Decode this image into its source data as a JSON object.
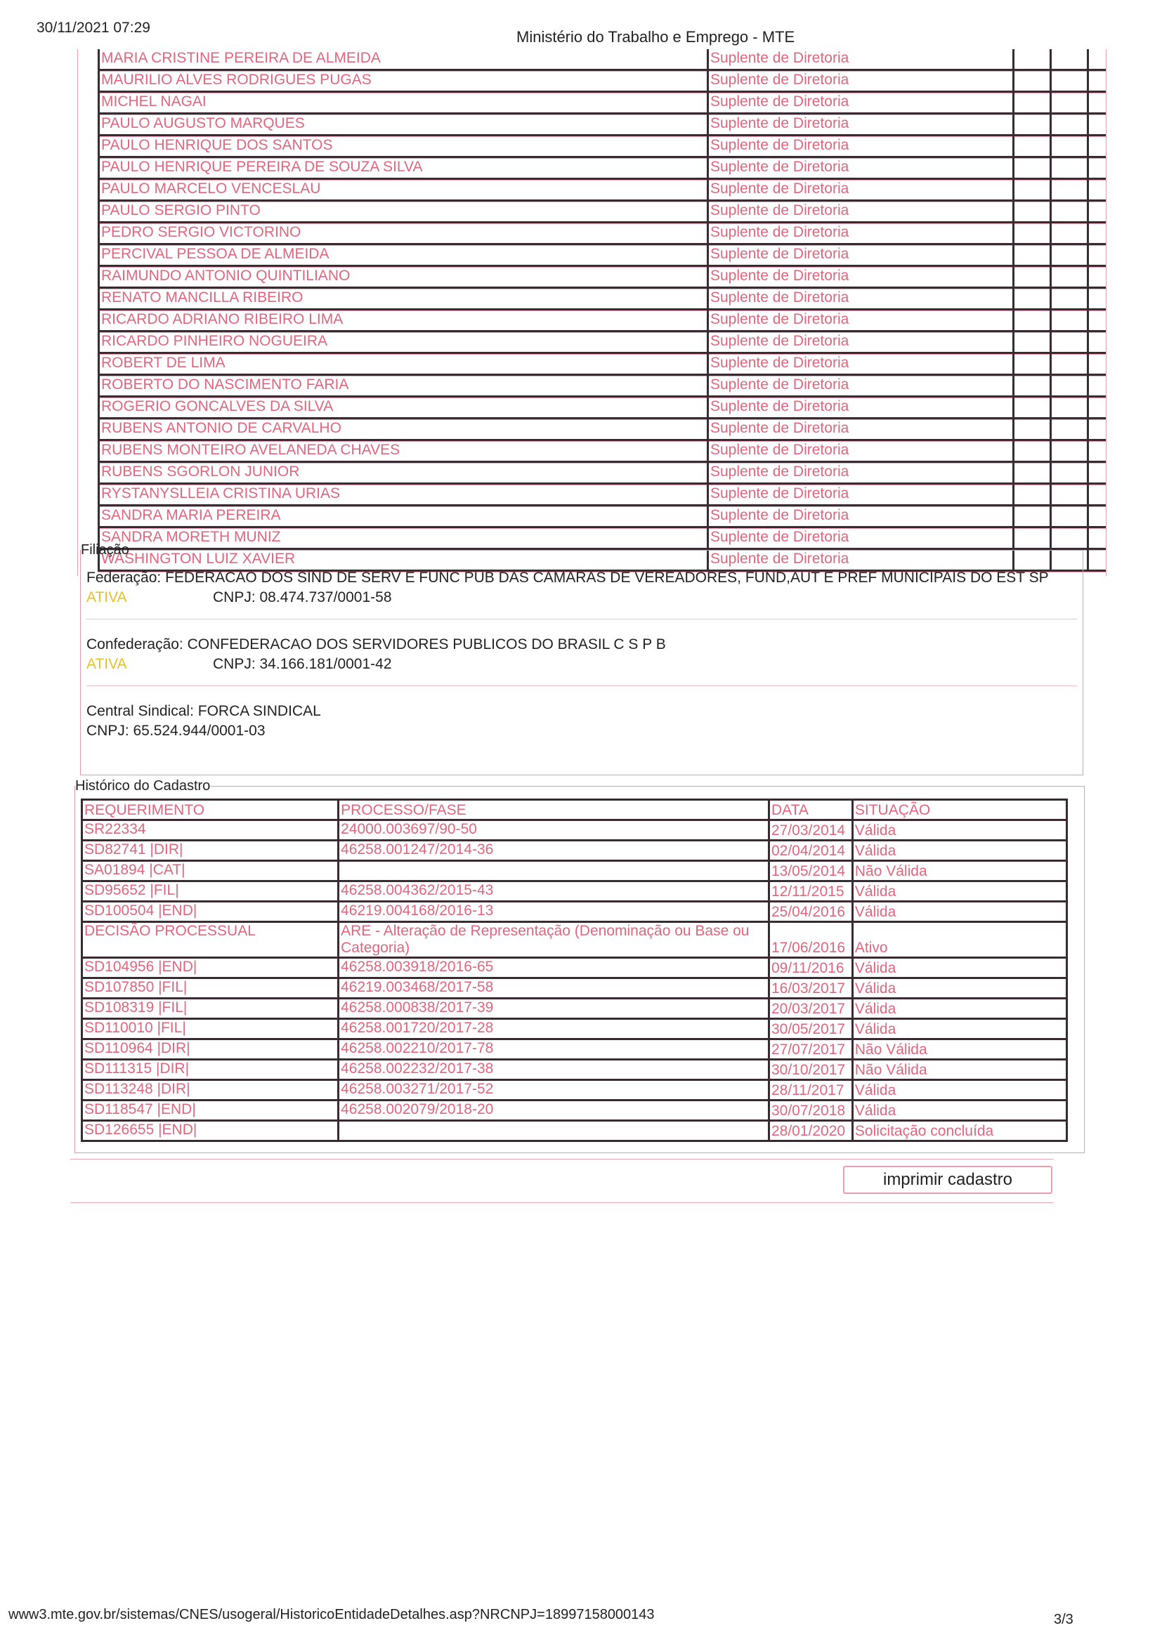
{
  "header": {
    "date": "30/11/2021 07:29",
    "title": "Ministério do Trabalho e Emprego - MTE"
  },
  "members": [
    {
      "name": "MARIA CRISTINE PEREIRA DE ALMEIDA",
      "role": "Suplente de Diretoria"
    },
    {
      "name": "MAURILIO ALVES RODRIGUES PUGAS",
      "role": "Suplente de Diretoria"
    },
    {
      "name": "MICHEL NAGAI",
      "role": "Suplente de Diretoria"
    },
    {
      "name": "PAULO AUGUSTO MARQUES",
      "role": "Suplente de Diretoria"
    },
    {
      "name": "PAULO HENRIQUE DOS SANTOS",
      "role": "Suplente de Diretoria"
    },
    {
      "name": "PAULO HENRIQUE PEREIRA DE SOUZA SILVA",
      "role": "Suplente de Diretoria"
    },
    {
      "name": "PAULO MARCELO VENCESLAU",
      "role": "Suplente de Diretoria"
    },
    {
      "name": "PAULO SERGIO PINTO",
      "role": "Suplente de Diretoria"
    },
    {
      "name": "PEDRO SERGIO VICTORINO",
      "role": "Suplente de Diretoria"
    },
    {
      "name": "PERCIVAL PESSOA DE ALMEIDA",
      "role": "Suplente de Diretoria"
    },
    {
      "name": "RAIMUNDO ANTONIO QUINTILIANO",
      "role": "Suplente de Diretoria"
    },
    {
      "name": "RENATO MANCILLA RIBEIRO",
      "role": "Suplente de Diretoria"
    },
    {
      "name": "RICARDO ADRIANO RIBEIRO LIMA",
      "role": "Suplente de Diretoria"
    },
    {
      "name": "RICARDO PINHEIRO NOGUEIRA",
      "role": "Suplente de Diretoria"
    },
    {
      "name": "ROBERT DE LIMA",
      "role": "Suplente de Diretoria"
    },
    {
      "name": "ROBERTO DO NASCIMENTO FARIA",
      "role": "Suplente de Diretoria"
    },
    {
      "name": "ROGERIO GONCALVES DA SILVA",
      "role": "Suplente de Diretoria"
    },
    {
      "name": "RUBENS ANTONIO DE CARVALHO",
      "role": "Suplente de Diretoria"
    },
    {
      "name": "RUBENS MONTEIRO AVELANEDA CHAVES",
      "role": "Suplente de Diretoria"
    },
    {
      "name": "RUBENS SGORLON JUNIOR",
      "role": "Suplente de Diretoria"
    },
    {
      "name": "RYSTANYSLLEIA CRISTINA URIAS",
      "role": "Suplente de Diretoria"
    },
    {
      "name": "SANDRA MARIA PEREIRA",
      "role": "Suplente de Diretoria"
    },
    {
      "name": "SANDRA MORETH MUNIZ",
      "role": "Suplente de Diretoria"
    },
    {
      "name": "WASHINGTON LUIZ XAVIER",
      "role": "Suplente de Diretoria"
    }
  ],
  "filiacao": {
    "legend": "Filiação",
    "federacao": {
      "label": "Federação:",
      "name": "FEDERACAO DOS SIND DE SERV E FUNC PUB DAS CAMARAS DE VEREADORES, FUND,AUT E PREF MUNICIPAIS DO EST SP",
      "status": "ATIVA",
      "cnpj": "CNPJ: 08.474.737/0001-58"
    },
    "confederacao": {
      "label": "Confederação:",
      "name": "CONFEDERACAO DOS SERVIDORES PUBLICOS DO BRASIL C S P B",
      "status": "ATIVA",
      "cnpj": "CNPJ: 34.166.181/0001-42"
    },
    "central": {
      "label": "Central Sindical:",
      "name": "FORCA SINDICAL",
      "cnpj": "CNPJ: 65.524.944/0001-03"
    },
    "status_color": "#e6c02a"
  },
  "historico": {
    "legend": "Histórico do Cadastro",
    "headers": [
      "REQUERIMENTO",
      "PROCESSO/FASE",
      "DATA",
      "SITUAÇÃO"
    ],
    "rows": [
      [
        "SR22334",
        "24000.003697/90-50",
        "27/03/2014",
        "Válida"
      ],
      [
        "SD82741 |DIR|",
        "46258.001247/2014-36",
        "02/04/2014",
        "Válida"
      ],
      [
        "SA01894 |CAT|",
        "",
        "13/05/2014",
        "Não Válida"
      ],
      [
        "SD95652 |FIL|",
        "46258.004362/2015-43",
        "12/11/2015",
        "Válida"
      ],
      [
        "SD100504 |END|",
        "46219.004168/2016-13",
        "25/04/2016",
        "Válida"
      ],
      [
        "DECISÃO PROCESSUAL",
        "ARE - Alteração de Representação (Denominação ou Base ou Categoria)",
        "17/06/2016",
        "Ativo"
      ],
      [
        "SD104956 |END|",
        "46258.003918/2016-65",
        "09/11/2016",
        "Válida"
      ],
      [
        "SD107850 |FIL|",
        "46219.003468/2017-58",
        "16/03/2017",
        "Válida"
      ],
      [
        "SD108319 |FIL|",
        "46258.000838/2017-39",
        "20/03/2017",
        "Válida"
      ],
      [
        "SD110010 |FIL|",
        "46258.001720/2017-28",
        "30/05/2017",
        "Válida"
      ],
      [
        "SD110964 |DIR|",
        "46258.002210/2017-78",
        "27/07/2017",
        "Não Válida"
      ],
      [
        "SD111315 |DIR|",
        "46258.002232/2017-38",
        "30/10/2017",
        "Não Válida"
      ],
      [
        "SD113248 |DIR|",
        "46258.003271/2017-52",
        "28/11/2017",
        "Válida"
      ],
      [
        "SD118547 |END|",
        "46258.002079/2018-20",
        "30/07/2018",
        "Válida"
      ],
      [
        "SD126655 |END|",
        "",
        "28/01/2020",
        "Solicitação concluída"
      ]
    ]
  },
  "actions": {
    "print_label": "imprimir cadastro"
  },
  "footer": {
    "url": "www3.mte.gov.br/sistemas/CNES/usogeral/HistoricoEntidadeDetalhes.asp?NRCNPJ=18997158000143",
    "page": "3/3"
  }
}
